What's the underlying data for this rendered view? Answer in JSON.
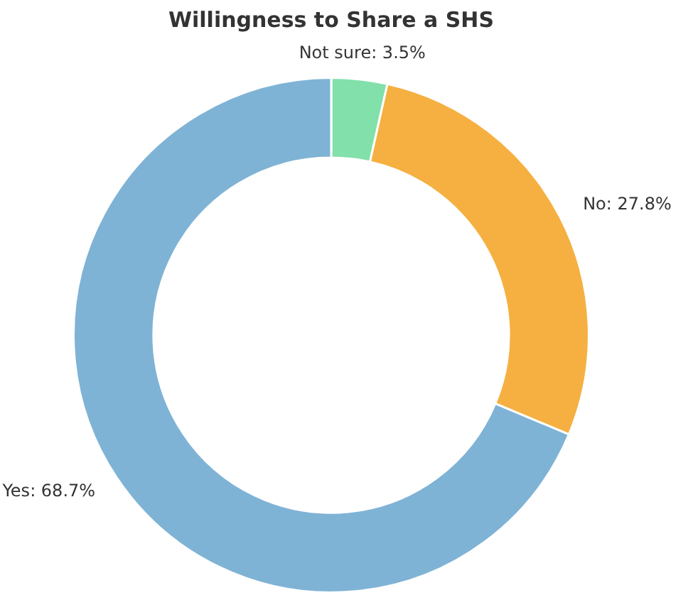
{
  "chart_data": {
    "type": "donut",
    "title": "Willingness to Share a SHS",
    "categories": [
      "Not sure",
      "No",
      "Yes"
    ],
    "values": [
      3.5,
      27.8,
      68.7
    ],
    "colors": [
      "#82e0aa",
      "#f5b041",
      "#7fb3d5"
    ],
    "value_labels": [
      "3.5%",
      "27.8%",
      "68.7%"
    ],
    "legend": false
  }
}
